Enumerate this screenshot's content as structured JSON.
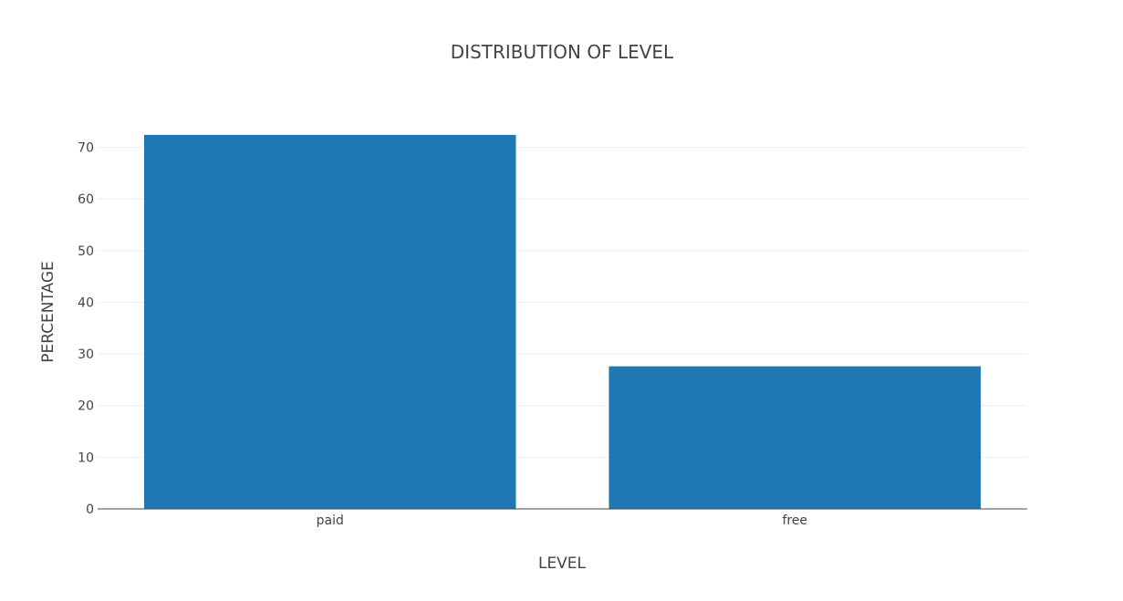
{
  "chart_data": {
    "type": "bar",
    "title": "DISTRIBUTION OF LEVEL",
    "xlabel": "LEVEL",
    "ylabel": "PERCENTAGE",
    "categories": [
      "paid",
      "free"
    ],
    "values": [
      72.4,
      27.6
    ],
    "ylim": [
      0,
      75
    ],
    "yticks": [
      0,
      10,
      20,
      30,
      40,
      50,
      60,
      70
    ],
    "grid": true,
    "bar_color": "#1f77b4",
    "grid_color": "#eeeeee",
    "axis_color": "#444444",
    "text_color": "#444444"
  }
}
